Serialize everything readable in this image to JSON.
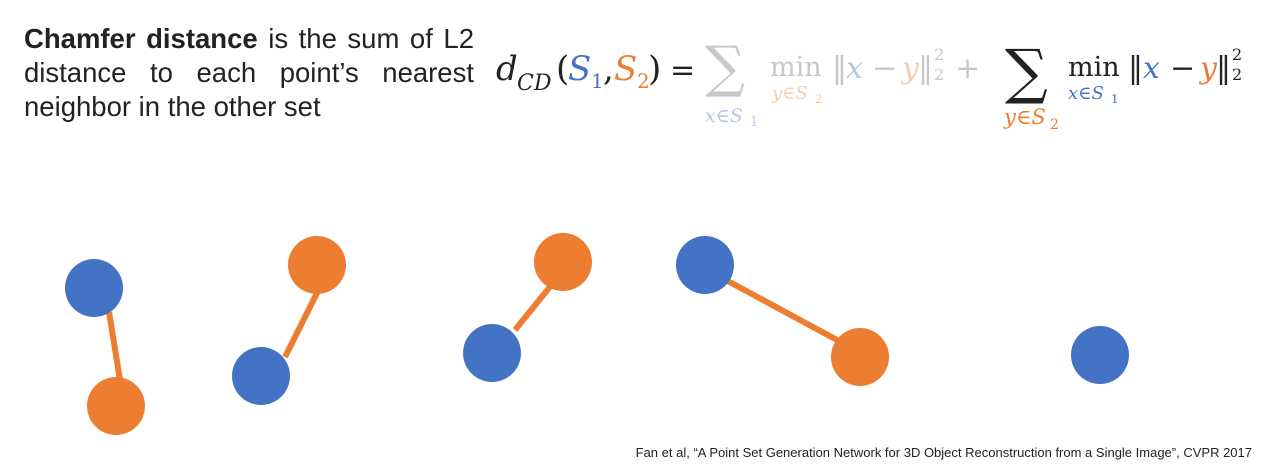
{
  "description": {
    "term": "Chamfer distance",
    "rest": " is the sum of L2 distance to each point’s nearest neighbor in the other set"
  },
  "equation": {
    "lhs_symbol": "d",
    "lhs_subscript": "CD",
    "open_paren": "(",
    "set1": "S",
    "set1_index": "1",
    "comma": ",",
    "set2": "S",
    "set2_index": "2",
    "close_paren": ")",
    "equals": "=",
    "plus": "+",
    "sum": "∑",
    "min": "min",
    "term1": {
      "sum_under": "x∈S",
      "sum_under_index": "1",
      "min_under": "y∈S",
      "min_under_index": "2",
      "norm_open": "‖",
      "x": "x",
      "minus": "−",
      "y": "y",
      "norm_close": "‖",
      "subscript": "2",
      "superscript": "2"
    },
    "term2": {
      "sum_under": "y∈S",
      "sum_under_index": "2",
      "min_under": "x∈S",
      "min_under_index": "1",
      "norm_open": "‖",
      "x": "x",
      "minus": "−",
      "y": "y",
      "norm_close": "‖",
      "subscript": "2",
      "superscript": "2"
    }
  },
  "colors": {
    "set1": "#4472c4",
    "set2": "#ed7d31",
    "faded": "#c8c8c8",
    "faded_set1": "#b4c6e7",
    "faded_set2": "#f8cbad",
    "text": "#222222"
  },
  "points": {
    "set1_color": "blue",
    "set2_color": "orange",
    "pairs": 4,
    "unmatched_set1": 1
  },
  "citation": "Fan et al, “A Point Set Generation Network for 3D Object Reconstruction from a Single Image”, CVPR 2017"
}
